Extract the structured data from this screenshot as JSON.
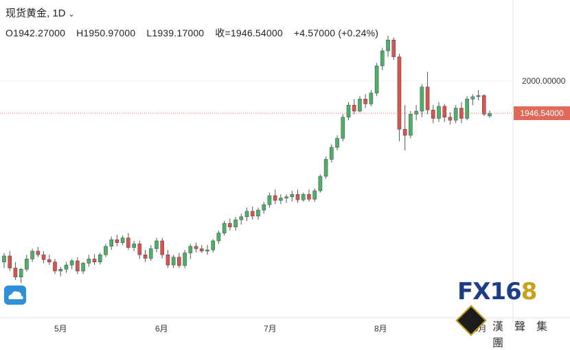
{
  "header": {
    "title": "现货黄金, 1D",
    "open": "O1942.27000",
    "high": "H1950.97000",
    "low": "L1939.17000",
    "close": "收=1946.54000",
    "change": "+4.57000 (+0.24%)"
  },
  "price_label": "1946.54000",
  "logo": {
    "fx": "FX16",
    "eight": "8",
    "cn": "漢聲集團"
  },
  "colors": {
    "up": "#4caf6a",
    "down": "#d9534f",
    "last_line": "#e06a5a",
    "text": "#222222"
  },
  "chart_data": {
    "type": "candlestick",
    "title": "现货黄金, 1D",
    "y_axis_ticks": [
      2000
    ],
    "y_tick_labels": [
      "2000.00000"
    ],
    "x_tick_labels": [
      "5月",
      "6月",
      "7月",
      "8月",
      "9月"
    ],
    "last_price": 1946.54,
    "series_ohlc_approx": [
      [
        1700,
        1715,
        1690,
        1710
      ],
      [
        1710,
        1718,
        1685,
        1690
      ],
      [
        1690,
        1700,
        1670,
        1675
      ],
      [
        1675,
        1690,
        1665,
        1688
      ],
      [
        1688,
        1712,
        1684,
        1705
      ],
      [
        1705,
        1722,
        1700,
        1718
      ],
      [
        1718,
        1725,
        1708,
        1712
      ],
      [
        1712,
        1718,
        1698,
        1704
      ],
      [
        1704,
        1712,
        1695,
        1700
      ],
      [
        1700,
        1705,
        1680,
        1685
      ],
      [
        1685,
        1692,
        1676,
        1688
      ],
      [
        1688,
        1700,
        1682,
        1695
      ],
      [
        1695,
        1705,
        1688,
        1702
      ],
      [
        1702,
        1708,
        1680,
        1685
      ],
      [
        1685,
        1700,
        1680,
        1698
      ],
      [
        1698,
        1712,
        1692,
        1705
      ],
      [
        1705,
        1713,
        1695,
        1700
      ],
      [
        1700,
        1715,
        1696,
        1712
      ],
      [
        1712,
        1730,
        1708,
        1726
      ],
      [
        1726,
        1742,
        1720,
        1737
      ],
      [
        1737,
        1745,
        1726,
        1732
      ],
      [
        1732,
        1744,
        1728,
        1740
      ],
      [
        1740,
        1748,
        1720,
        1724
      ],
      [
        1724,
        1735,
        1718,
        1730
      ],
      [
        1730,
        1735,
        1705,
        1712
      ],
      [
        1712,
        1720,
        1700,
        1706
      ],
      [
        1706,
        1728,
        1702,
        1722
      ],
      [
        1722,
        1740,
        1716,
        1735
      ],
      [
        1735,
        1740,
        1706,
        1712
      ],
      [
        1712,
        1720,
        1690,
        1695
      ],
      [
        1695,
        1712,
        1690,
        1708
      ],
      [
        1708,
        1715,
        1690,
        1694
      ],
      [
        1694,
        1720,
        1690,
        1715
      ],
      [
        1715,
        1730,
        1705,
        1726
      ],
      [
        1726,
        1732,
        1716,
        1722
      ],
      [
        1722,
        1728,
        1715,
        1718
      ],
      [
        1718,
        1728,
        1712,
        1720
      ],
      [
        1720,
        1738,
        1716,
        1735
      ],
      [
        1735,
        1752,
        1730,
        1748
      ],
      [
        1748,
        1768,
        1744,
        1764
      ],
      [
        1764,
        1772,
        1752,
        1758
      ],
      [
        1758,
        1775,
        1752,
        1770
      ],
      [
        1770,
        1780,
        1762,
        1775
      ],
      [
        1775,
        1790,
        1768,
        1784
      ],
      [
        1784,
        1792,
        1770,
        1776
      ],
      [
        1776,
        1790,
        1770,
        1786
      ],
      [
        1786,
        1800,
        1780,
        1795
      ],
      [
        1795,
        1815,
        1790,
        1810
      ],
      [
        1810,
        1820,
        1796,
        1802
      ],
      [
        1802,
        1812,
        1796,
        1806
      ],
      [
        1806,
        1812,
        1798,
        1808
      ],
      [
        1808,
        1818,
        1800,
        1812
      ],
      [
        1812,
        1820,
        1798,
        1803
      ],
      [
        1803,
        1815,
        1800,
        1812
      ],
      [
        1812,
        1820,
        1800,
        1804
      ],
      [
        1804,
        1822,
        1800,
        1818
      ],
      [
        1818,
        1845,
        1815,
        1842
      ],
      [
        1842,
        1875,
        1838,
        1870
      ],
      [
        1870,
        1895,
        1865,
        1890
      ],
      [
        1890,
        1910,
        1885,
        1905
      ],
      [
        1905,
        1945,
        1900,
        1940
      ],
      [
        1940,
        1965,
        1935,
        1960
      ],
      [
        1960,
        1970,
        1945,
        1950
      ],
      [
        1950,
        1975,
        1948,
        1970
      ],
      [
        1970,
        1978,
        1955,
        1962
      ],
      [
        1962,
        1985,
        1958,
        1980
      ],
      [
        1980,
        2030,
        1975,
        2025
      ],
      [
        2025,
        2055,
        2018,
        2050
      ],
      [
        2050,
        2075,
        2040,
        2068
      ],
      [
        2068,
        2072,
        2035,
        2040
      ],
      [
        2040,
        2045,
        1900,
        1920
      ],
      [
        1920,
        1960,
        1885,
        1910
      ],
      [
        1910,
        1950,
        1905,
        1945
      ],
      [
        1945,
        1960,
        1935,
        1950
      ],
      [
        1950,
        1995,
        1940,
        1990
      ],
      [
        1990,
        2015,
        1945,
        1952
      ],
      [
        1952,
        1960,
        1930,
        1938
      ],
      [
        1938,
        1965,
        1932,
        1958
      ],
      [
        1958,
        1962,
        1932,
        1940
      ],
      [
        1940,
        1948,
        1928,
        1935
      ],
      [
        1935,
        1960,
        1930,
        1955
      ],
      [
        1955,
        1965,
        1930,
        1938
      ],
      [
        1938,
        1975,
        1935,
        1970
      ],
      [
        1970,
        1978,
        1960,
        1974
      ],
      [
        1974,
        1985,
        1968,
        1976
      ],
      [
        1976,
        1978,
        1942,
        1945
      ],
      [
        1942,
        1951,
        1939,
        1946.54
      ]
    ]
  }
}
